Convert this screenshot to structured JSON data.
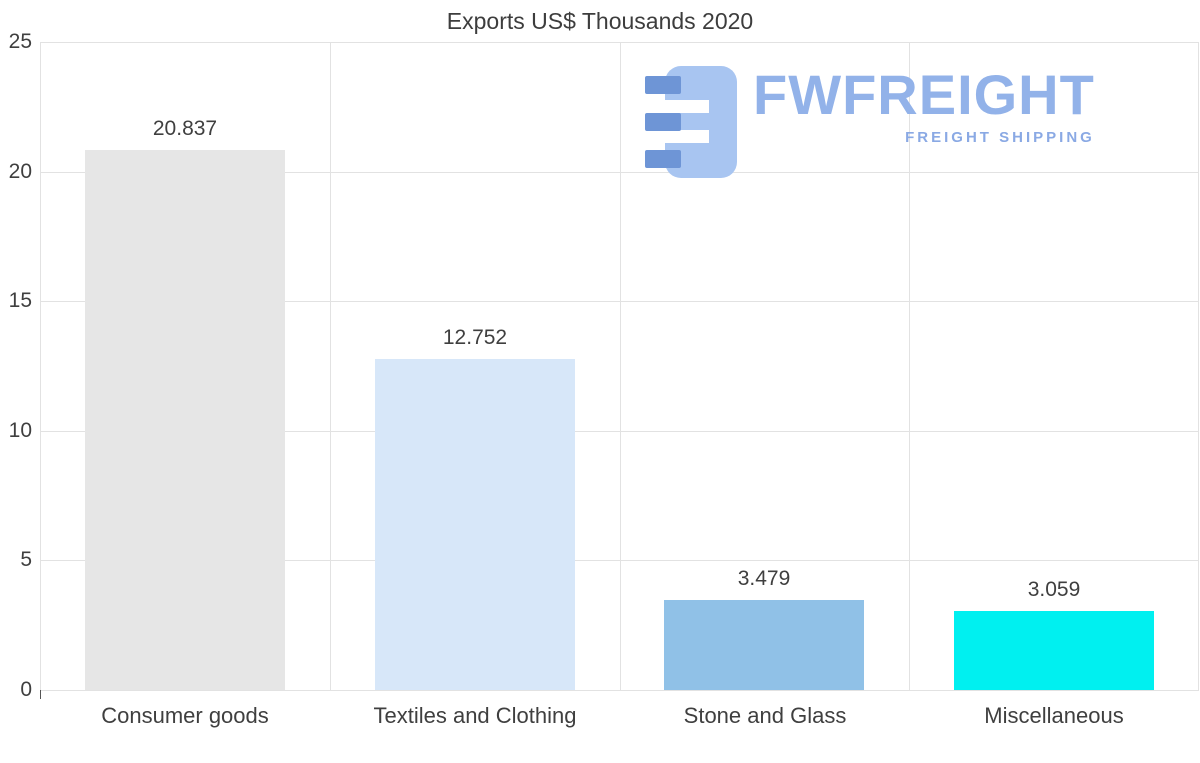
{
  "chart_data": {
    "type": "bar",
    "title": "Exports US$ Thousands 2020",
    "categories": [
      "Consumer goods",
      "Textiles and Clothing",
      "Stone and Glass",
      "Miscellaneous"
    ],
    "values": [
      20.837,
      12.752,
      3.479,
      3.059
    ],
    "value_labels": [
      "20.837",
      "12.752",
      "3.479",
      "3.059"
    ],
    "bar_colors": [
      "#e6e6e6",
      "#d7e7f9",
      "#90c1e7",
      "#00f0f0"
    ],
    "ylim": [
      0,
      25
    ],
    "yticks": [
      0,
      5,
      10,
      15,
      20,
      25
    ],
    "grid": true,
    "legend": "none",
    "xlabel": "",
    "ylabel": ""
  },
  "watermark": {
    "brand": "FWFREIGHT",
    "tagline": "FREIGHT SHIPPING",
    "brand_color": "#92b2e9",
    "icon_dark_color": "#6e95d6",
    "icon_light_color": "#a8c5f1"
  }
}
